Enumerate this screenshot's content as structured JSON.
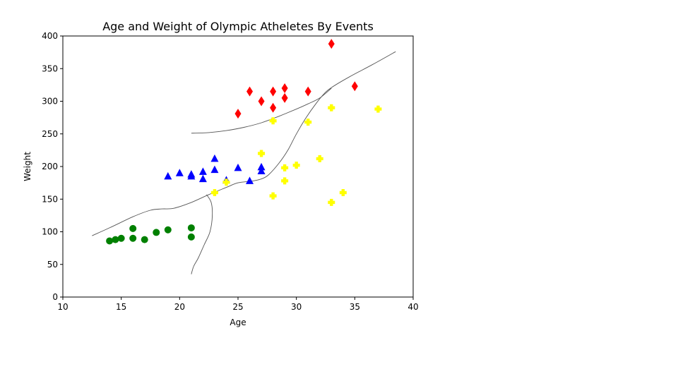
{
  "chart_data": {
    "type": "scatter",
    "title": "Age and Weight of Olympic Atheletes By Events",
    "xlabel": "Age",
    "ylabel": "Weight",
    "xlim": [
      10,
      40
    ],
    "ylim": [
      0,
      400
    ],
    "xticks": [
      10,
      15,
      20,
      25,
      30,
      35,
      40
    ],
    "yticks": [
      0,
      50,
      100,
      150,
      200,
      250,
      300,
      350,
      400
    ],
    "grid": false,
    "series": [
      {
        "color": "#008000",
        "marker": "circle",
        "points": [
          [
            14,
            86
          ],
          [
            14.5,
            88
          ],
          [
            15,
            90
          ],
          [
            16,
            105
          ],
          [
            16,
            90
          ],
          [
            17,
            88
          ],
          [
            18,
            99
          ],
          [
            19,
            103
          ],
          [
            21,
            106
          ],
          [
            21,
            92
          ]
        ]
      },
      {
        "color": "#0000ff",
        "marker": "triangle",
        "points": [
          [
            19,
            185
          ],
          [
            20,
            190
          ],
          [
            21,
            188
          ],
          [
            21,
            185
          ],
          [
            22,
            192
          ],
          [
            22,
            181
          ],
          [
            23,
            212
          ],
          [
            23,
            195
          ],
          [
            24,
            179
          ],
          [
            25,
            198
          ],
          [
            26,
            178
          ],
          [
            27,
            199
          ],
          [
            27,
            193
          ]
        ]
      },
      {
        "color": "#ffff00",
        "marker": "plus",
        "points": [
          [
            23,
            160
          ],
          [
            24,
            176
          ],
          [
            27,
            220
          ],
          [
            28,
            270
          ],
          [
            28,
            155
          ],
          [
            29,
            198
          ],
          [
            29,
            178
          ],
          [
            30,
            202
          ],
          [
            31,
            268
          ],
          [
            32,
            212
          ],
          [
            33,
            290
          ],
          [
            33,
            145
          ],
          [
            34,
            160
          ],
          [
            37,
            288
          ]
        ]
      },
      {
        "color": "#ff0000",
        "marker": "diamond",
        "points": [
          [
            25,
            281
          ],
          [
            26,
            315
          ],
          [
            27,
            300
          ],
          [
            28,
            315
          ],
          [
            28,
            290
          ],
          [
            29,
            320
          ],
          [
            29,
            305
          ],
          [
            31,
            315
          ],
          [
            33,
            388
          ],
          [
            35,
            323
          ]
        ]
      }
    ],
    "curves": [
      [
        [
          12.5,
          94
        ],
        [
          14,
          106
        ],
        [
          16,
          123
        ],
        [
          17.5,
          133
        ],
        [
          18.5,
          135
        ],
        [
          19.5,
          136
        ],
        [
          21,
          145
        ],
        [
          22.5,
          157
        ],
        [
          24,
          168
        ],
        [
          25,
          175
        ],
        [
          26.3,
          178
        ],
        [
          27,
          181
        ],
        [
          27.6,
          187
        ],
        [
          28.5,
          205
        ],
        [
          29.3,
          226
        ],
        [
          30,
          250
        ],
        [
          30.8,
          274
        ],
        [
          31.7,
          297
        ],
        [
          32.4,
          312
        ],
        [
          33,
          321
        ],
        [
          34.5,
          337
        ],
        [
          36.5,
          356
        ],
        [
          38.5,
          376
        ]
      ],
      [
        [
          21,
          251
        ],
        [
          22.5,
          252
        ],
        [
          24,
          255
        ],
        [
          25.5,
          260
        ],
        [
          27,
          267
        ],
        [
          28.5,
          277
        ],
        [
          30,
          288
        ],
        [
          31,
          296
        ],
        [
          32,
          305
        ],
        [
          33,
          320
        ]
      ],
      [
        [
          22.3,
          157
        ],
        [
          22.7,
          145
        ],
        [
          22.8,
          125
        ],
        [
          22.6,
          100
        ],
        [
          22.1,
          80
        ],
        [
          21.6,
          60
        ],
        [
          21.2,
          47
        ],
        [
          21,
          35
        ]
      ]
    ]
  }
}
